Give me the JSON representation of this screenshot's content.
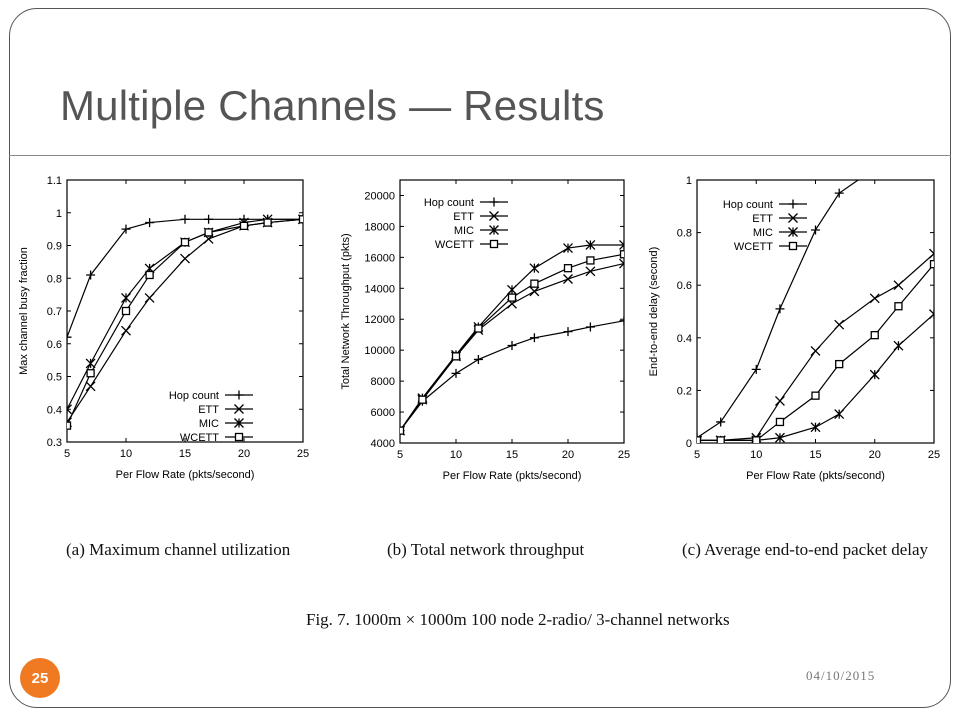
{
  "slide": {
    "title": "Multiple Channels — Results",
    "number": "25",
    "date": "04/10/2015"
  },
  "figure": {
    "caption": "Fig. 7.   1000m × 1000m 100 node 2-radio/ 3-channel networks",
    "subcaptions": [
      "(a) Maximum channel utilization",
      "(b) Total network throughput",
      "(c) Average end-to-end packet delay"
    ]
  },
  "colors": {
    "accent": "#f07a22",
    "title": "#555555",
    "line": "#000000"
  },
  "chart_data": [
    {
      "type": "line",
      "title": "",
      "xlabel": "Per Flow Rate (pkts/second)",
      "ylabel": "Max channel busy fraction",
      "xlim": [
        5,
        25
      ],
      "ylim": [
        0.3,
        1.1
      ],
      "xticks": [
        5,
        10,
        15,
        20,
        25
      ],
      "yticks": [
        0.3,
        0.4,
        0.5,
        0.6,
        0.7,
        0.8,
        0.9,
        1,
        1.1
      ],
      "legend_position": "bottom-right",
      "x": [
        5,
        7,
        10,
        12,
        15,
        17,
        20,
        22,
        25
      ],
      "series": [
        {
          "name": "Hop count",
          "marker": "plus",
          "values": [
            0.62,
            0.81,
            0.95,
            0.97,
            0.98,
            0.98,
            0.98,
            0.98,
            0.98
          ]
        },
        {
          "name": "ETT",
          "marker": "cross",
          "values": [
            0.36,
            0.47,
            0.64,
            0.74,
            0.86,
            0.92,
            0.96,
            0.97,
            0.98
          ]
        },
        {
          "name": "MIC",
          "marker": "star",
          "values": [
            0.4,
            0.54,
            0.74,
            0.83,
            0.91,
            0.94,
            0.97,
            0.98,
            0.98
          ]
        },
        {
          "name": "WCETT",
          "marker": "square",
          "values": [
            0.35,
            0.51,
            0.7,
            0.81,
            0.91,
            0.94,
            0.96,
            0.97,
            0.98
          ]
        }
      ]
    },
    {
      "type": "line",
      "title": "",
      "xlabel": "Per Flow Rate (pkts/second)",
      "ylabel": "Total Network Throughput (pkts)",
      "xlim": [
        5,
        25
      ],
      "ylim": [
        4000,
        21000
      ],
      "xticks": [
        5,
        10,
        15,
        20,
        25
      ],
      "yticks": [
        4000,
        6000,
        8000,
        10000,
        12000,
        14000,
        16000,
        18000,
        20000
      ],
      "legend_position": "top-left",
      "x": [
        5,
        7,
        10,
        12,
        15,
        17,
        20,
        22,
        25
      ],
      "series": [
        {
          "name": "Hop count",
          "marker": "plus",
          "values": [
            4800,
            6700,
            8500,
            9400,
            10300,
            10800,
            11200,
            11500,
            11900
          ]
        },
        {
          "name": "ETT",
          "marker": "cross",
          "values": [
            4800,
            6800,
            9600,
            11300,
            13000,
            13800,
            14600,
            15100,
            15600
          ]
        },
        {
          "name": "MIC",
          "marker": "star",
          "values": [
            4800,
            6900,
            9700,
            11500,
            13900,
            15300,
            16600,
            16800,
            16800
          ]
        },
        {
          "name": "WCETT",
          "marker": "square",
          "values": [
            4800,
            6800,
            9600,
            11400,
            13400,
            14300,
            15300,
            15800,
            16200
          ]
        }
      ]
    },
    {
      "type": "line",
      "title": "",
      "xlabel": "Per Flow Rate (pkts/second)",
      "ylabel": "End-to-end delay (second)",
      "xlim": [
        5,
        25
      ],
      "ylim": [
        0,
        1
      ],
      "xticks": [
        5,
        10,
        15,
        20,
        25
      ],
      "yticks": [
        0,
        0.2,
        0.4,
        0.6,
        0.8,
        1
      ],
      "legend_position": "top-left",
      "x": [
        5,
        7,
        10,
        12,
        15,
        17,
        20,
        22,
        25
      ],
      "series": [
        {
          "name": "Hop count",
          "marker": "plus",
          "values": [
            0.02,
            0.08,
            0.28,
            0.51,
            0.81,
            0.95,
            null,
            null,
            null
          ],
          "extend_to": [
            18.6,
            1.0
          ]
        },
        {
          "name": "ETT",
          "marker": "cross",
          "values": [
            0.01,
            0.01,
            0.02,
            0.16,
            0.35,
            0.45,
            0.55,
            0.6,
            0.72
          ]
        },
        {
          "name": "MIC",
          "marker": "star",
          "values": [
            0.01,
            0.01,
            0.01,
            0.02,
            0.06,
            0.11,
            0.26,
            0.37,
            0.49
          ]
        },
        {
          "name": "WCETT",
          "marker": "square",
          "values": [
            0.01,
            0.01,
            0.01,
            0.08,
            0.18,
            0.3,
            0.41,
            0.52,
            0.68
          ]
        }
      ]
    }
  ]
}
